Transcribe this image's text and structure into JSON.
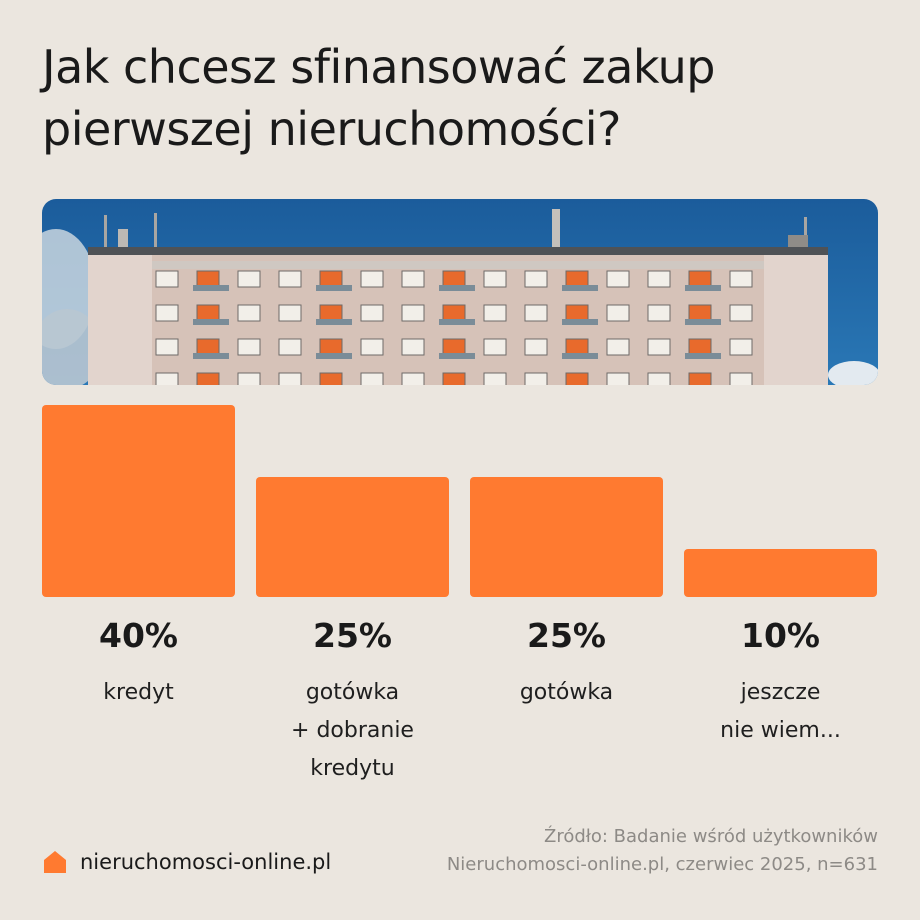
{
  "title": "Jak chcesz sfinansować zakup pierwszej nieruchomości?",
  "colors": {
    "background": "#ebe6df",
    "bar": "#ff7a30",
    "text": "#1a1a1a",
    "source_text": "#8d8a86",
    "sky": "#1d5f9e"
  },
  "chart_data": {
    "type": "bar",
    "categories": [
      "kredyt",
      "gotówka\n+ dobranie\nkredytu",
      "gotówka",
      "jeszcze\nnie wiem..."
    ],
    "values": [
      40,
      25,
      25,
      10
    ],
    "value_labels": [
      "40%",
      "25%",
      "25%",
      "10%"
    ],
    "unit": "%",
    "ylim": [
      0,
      40
    ],
    "grid": false,
    "legend": "none"
  },
  "footer": {
    "logo_text": "nieruchomosci-online.pl",
    "logo_icon": "house-icon",
    "source_line1": "Źródło: Badanie wśród użytkowników",
    "source_line2": "Nieruchomosci-online.pl, czerwiec 2025, n=631"
  },
  "photo": {
    "subject": "apartment-block-photo"
  }
}
